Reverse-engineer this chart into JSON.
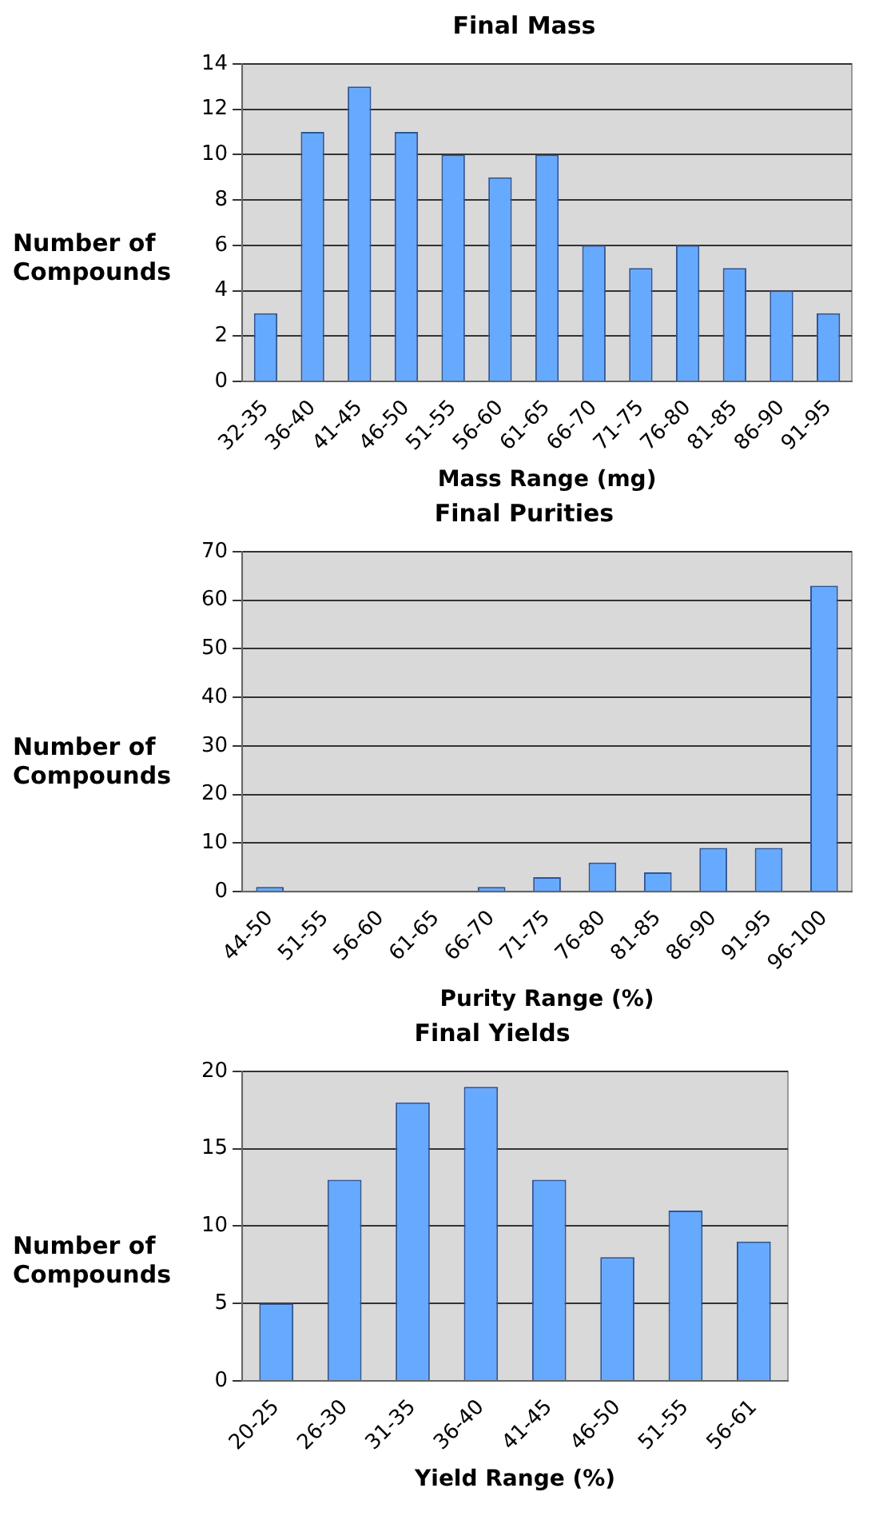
{
  "chart_data": [
    {
      "type": "bar",
      "title": "Final Mass",
      "xlabel": "Mass Range (mg)",
      "ylabel": "Number of Compounds",
      "categories": [
        "32-35",
        "36-40",
        "41-45",
        "46-50",
        "51-55",
        "56-60",
        "61-65",
        "66-70",
        "71-75",
        "76-80",
        "81-85",
        "86-90",
        "91-95"
      ],
      "values": [
        3,
        11,
        13,
        11,
        10,
        9,
        10,
        6,
        5,
        6,
        5,
        4,
        3
      ],
      "color": "#66aaff",
      "ylim": [
        0,
        14
      ],
      "yticks": [
        0,
        2,
        4,
        6,
        8,
        10,
        12,
        14
      ],
      "grid": "y"
    },
    {
      "type": "bar",
      "title": "Final Purities",
      "xlabel": "Purity Range (%)",
      "ylabel": "Number of Compounds",
      "categories": [
        "44-50",
        "51-55",
        "56-60",
        "61-65",
        "66-70",
        "71-75",
        "76-80",
        "81-85",
        "86-90",
        "91-95",
        "96-100"
      ],
      "values": [
        1,
        0,
        0,
        0,
        1,
        3,
        6,
        4,
        9,
        9,
        63
      ],
      "color": "#66aaff",
      "ylim": [
        0,
        70
      ],
      "yticks": [
        0,
        10,
        20,
        30,
        40,
        50,
        60,
        70
      ],
      "grid": "y"
    },
    {
      "type": "bar",
      "title": "Final Yields",
      "xlabel": "Yield Range (%)",
      "ylabel": "Number of Compounds",
      "categories": [
        "20-25",
        "26-30",
        "31-35",
        "36-40",
        "41-45",
        "46-50",
        "51-55",
        "56-61"
      ],
      "values": [
        5,
        13,
        18,
        19,
        13,
        8,
        11,
        9
      ],
      "color": "#66aaff",
      "ylim": [
        0,
        20
      ],
      "yticks": [
        0,
        5,
        10,
        15,
        20
      ],
      "grid": "y"
    }
  ]
}
